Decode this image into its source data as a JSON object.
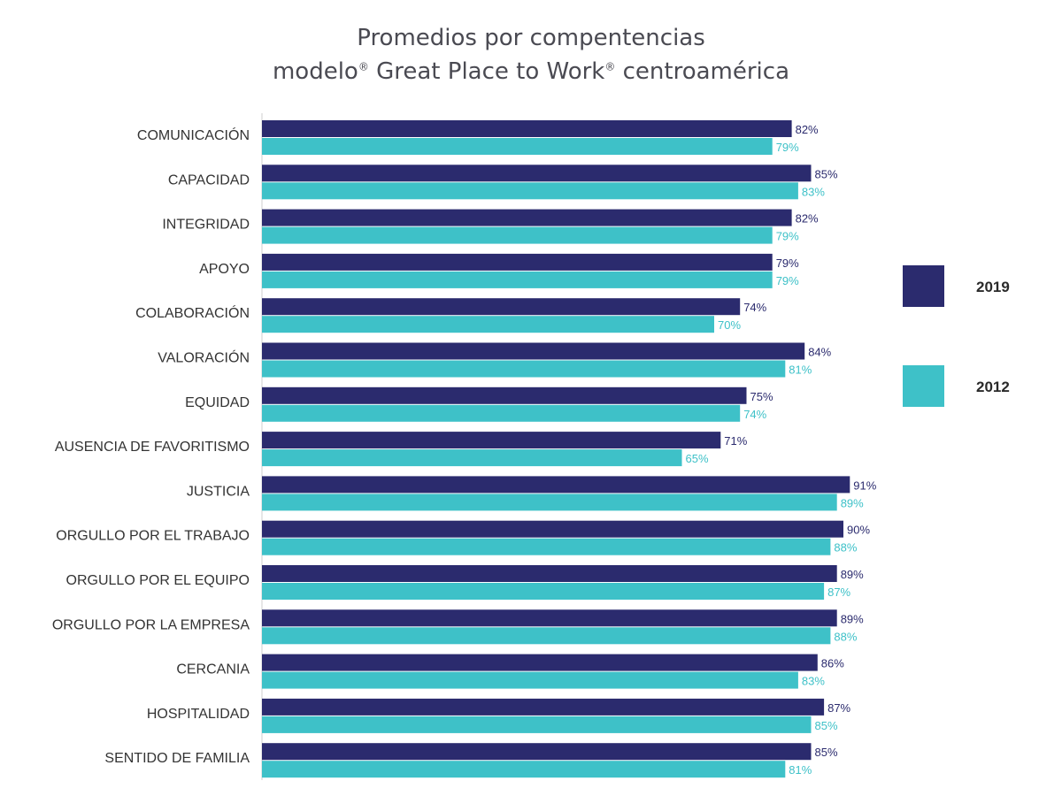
{
  "chart_data": {
    "type": "bar",
    "orientation": "horizontal",
    "title_line1": "Promedios por compentencias",
    "title_line2_pre": "modelo",
    "title_line2_mark1": "®",
    "title_line2_mid": " Great Place to Work",
    "title_line2_mark2": "®",
    "title_line2_post": " centroamérica",
    "xlabel": "",
    "ylabel": "",
    "xlim": [
      0,
      100
    ],
    "grid": false,
    "legend": "right",
    "categories": [
      "COMUNICACIÓN",
      "CAPACIDAD",
      "INTEGRIDAD",
      "APOYO",
      "COLABORACIÓN",
      "VALORACIÓN",
      "EQUIDAD",
      "AUSENCIA DE FAVORITISMO",
      "JUSTICIA",
      "ORGULLO POR EL TRABAJO",
      "ORGULLO POR EL EQUIPO",
      "ORGULLO POR LA EMPRESA",
      "CERCANIA",
      "HOSPITALIDAD",
      "SENTIDO DE FAMILIA"
    ],
    "series": [
      {
        "name": "2019",
        "color": "#2b2b6e",
        "values": [
          82,
          85,
          82,
          79,
          74,
          84,
          75,
          71,
          91,
          90,
          89,
          89,
          86,
          87,
          85
        ],
        "labels": [
          "82%",
          "85%",
          "82%",
          "79%",
          "74%",
          "84%",
          "75%",
          "71%",
          "91%",
          "90%",
          "89%",
          "89%",
          "86%",
          "87%",
          "85%"
        ]
      },
      {
        "name": "2012",
        "color": "#3ec1c8",
        "values": [
          79,
          83,
          79,
          79,
          70,
          81,
          74,
          65,
          89,
          88,
          87,
          88,
          83,
          85,
          81
        ],
        "labels": [
          "79%",
          "83%",
          "79%",
          "79%",
          "70%",
          "81%",
          "74%",
          "65%",
          "89%",
          "88%",
          "87%",
          "88%",
          "83%",
          "85%",
          "81%"
        ]
      }
    ]
  }
}
